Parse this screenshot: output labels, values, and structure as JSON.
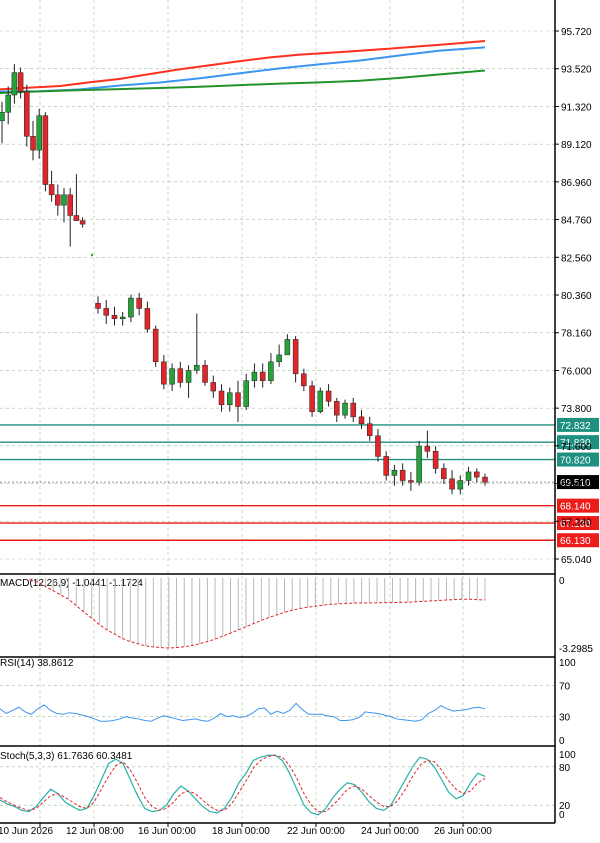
{
  "chart_data": [
    {
      "type": "candlestick",
      "y_axis_ticks": [
        "95.720",
        "93.520",
        "91.320",
        "89.120",
        "86.960",
        "84.760",
        "82.560",
        "80.360",
        "78.160",
        "76.000",
        "73.800",
        "71.600",
        "69.400",
        "67.240",
        "65.040"
      ],
      "x_axis_labels": [
        "10 Jun 2026",
        "12 Jun 08:00",
        "16 Jun 00:00",
        "18 Jun 00:00",
        "22 Jun 00:00",
        "24 Jun 00:00",
        "26 Jun 00:00"
      ],
      "current_price": "69.510",
      "resistance_levels": [
        "72.832",
        "71.830",
        "70.820"
      ],
      "support_levels": [
        "68.140",
        "67.130",
        "66.130"
      ],
      "candles_ohlc": [
        [
          90.5,
          91.6,
          89.2,
          91.0
        ],
        [
          91.0,
          92.5,
          90.3,
          92.0
        ],
        [
          92.0,
          93.8,
          91.5,
          93.3
        ],
        [
          93.3,
          93.6,
          91.8,
          92.2
        ],
        [
          92.2,
          92.6,
          89.0,
          89.6
        ],
        [
          89.6,
          90.5,
          88.2,
          88.8
        ],
        [
          88.8,
          91.2,
          88.3,
          90.8
        ],
        [
          90.8,
          91.0,
          86.4,
          86.8
        ],
        [
          86.8,
          87.6,
          85.8,
          86.2
        ],
        [
          86.2,
          86.8,
          85.0,
          85.6
        ],
        [
          85.6,
          86.6,
          84.6,
          86.2
        ],
        [
          86.2,
          86.6,
          83.2,
          85.0
        ],
        [
          85.0,
          87.4,
          84.8,
          84.7
        ],
        [
          84.7,
          84.9,
          84.3,
          84.5
        ],
        [
          79.9,
          80.3,
          79.3,
          79.6
        ],
        [
          79.6,
          80.1,
          78.7,
          79.2
        ],
        [
          79.2,
          79.7,
          78.6,
          79.0
        ],
        [
          79.0,
          79.4,
          78.6,
          79.1
        ],
        [
          79.1,
          80.4,
          78.8,
          80.2
        ],
        [
          80.2,
          80.5,
          79.2,
          79.6
        ],
        [
          79.6,
          80.0,
          78.2,
          78.4
        ],
        [
          78.4,
          78.6,
          76.2,
          76.5
        ],
        [
          76.5,
          76.9,
          74.9,
          75.2
        ],
        [
          75.2,
          76.4,
          74.8,
          76.1
        ],
        [
          76.1,
          76.5,
          75.0,
          75.3
        ],
        [
          75.3,
          76.3,
          74.4,
          76.0
        ],
        [
          76.0,
          79.3,
          75.8,
          76.3
        ],
        [
          76.3,
          76.6,
          75.1,
          75.3
        ],
        [
          75.3,
          75.7,
          74.4,
          74.8
        ],
        [
          74.8,
          75.2,
          73.6,
          74.0
        ],
        [
          74.0,
          75.0,
          73.6,
          74.7
        ],
        [
          74.7,
          75.4,
          73.0,
          73.9
        ],
        [
          73.9,
          75.8,
          73.7,
          75.4
        ],
        [
          75.4,
          76.4,
          75.0,
          75.9
        ],
        [
          75.9,
          76.4,
          75.0,
          75.4
        ],
        [
          75.4,
          77.0,
          75.2,
          76.5
        ],
        [
          76.5,
          77.5,
          76.2,
          76.9
        ],
        [
          76.9,
          78.1,
          77.6,
          77.8
        ],
        [
          77.8,
          78.0,
          75.3,
          75.8
        ],
        [
          75.8,
          76.1,
          74.8,
          75.1
        ],
        [
          75.1,
          75.4,
          73.3,
          73.6
        ],
        [
          73.6,
          75.0,
          73.5,
          74.8
        ],
        [
          74.8,
          75.2,
          73.9,
          74.2
        ],
        [
          74.2,
          74.4,
          73.0,
          73.4
        ],
        [
          73.4,
          74.3,
          73.2,
          74.1
        ],
        [
          74.1,
          74.4,
          73.0,
          73.3
        ],
        [
          73.3,
          73.7,
          72.6,
          72.9
        ],
        [
          72.9,
          73.3,
          71.9,
          72.2
        ],
        [
          72.2,
          72.6,
          70.7,
          71.0
        ],
        [
          71.0,
          71.3,
          69.6,
          69.9
        ],
        [
          69.9,
          70.5,
          69.3,
          70.2
        ],
        [
          70.2,
          70.6,
          69.3,
          69.6
        ],
        [
          69.6,
          70.1,
          69.0,
          69.5
        ],
        [
          69.5,
          71.9,
          69.3,
          71.6
        ],
        [
          71.6,
          72.5,
          70.9,
          71.3
        ],
        [
          71.3,
          71.6,
          70.0,
          70.3
        ],
        [
          70.3,
          70.6,
          69.4,
          69.7
        ],
        [
          69.7,
          70.2,
          68.8,
          69.1
        ],
        [
          69.1,
          69.9,
          68.8,
          69.6
        ],
        [
          69.6,
          70.4,
          69.3,
          70.1
        ],
        [
          70.1,
          70.3,
          69.5,
          69.8
        ],
        [
          69.8,
          70.0,
          69.3,
          69.5
        ]
      ],
      "moving_averages": [
        {
          "color": "#ff3020",
          "values": [
            [
              0,
              89.4
            ],
            [
              30,
              87.6
            ],
            [
              60,
              86.0
            ],
            [
              90,
              82.3
            ],
            [
              120,
              78.9
            ],
            [
              150,
              74.0
            ],
            [
              180,
              69.3
            ],
            [
              210,
              65.2
            ],
            [
              240,
              61.1
            ],
            [
              270,
              57.4
            ],
            [
              300,
              54.6
            ],
            [
              330,
              52.8
            ],
            [
              360,
              50.8
            ],
            [
              390,
              48.6
            ],
            [
              420,
              46.3
            ],
            [
              450,
              44.0
            ],
            [
              485,
              41.0
            ]
          ]
        },
        {
          "color": "#3c96f0",
          "values": [
            [
              0,
              91.6
            ],
            [
              40,
              91.2
            ],
            [
              80,
              89.4
            ],
            [
              120,
              85.5
            ],
            [
              160,
              82.5
            ],
            [
              200,
              78.2
            ],
            [
              240,
              73.2
            ],
            [
              280,
              68.4
            ],
            [
              320,
              64.3
            ],
            [
              360,
              60.5
            ],
            [
              400,
              55.4
            ],
            [
              440,
              50.6
            ],
            [
              485,
              47.4
            ]
          ]
        },
        {
          "color": "#22922a",
          "values": [
            [
              0,
              93.0
            ],
            [
              40,
              91.4
            ],
            [
              80,
              90.1
            ],
            [
              120,
              89.1
            ],
            [
              160,
              88.0
            ],
            [
              200,
              86.7
            ],
            [
              240,
              85.1
            ],
            [
              280,
              83.6
            ],
            [
              320,
              82.4
            ],
            [
              360,
              80.7
            ],
            [
              400,
              77.9
            ],
            [
              440,
              74.4
            ],
            [
              485,
              70.5
            ]
          ]
        }
      ]
    },
    {
      "type": "histogram",
      "indicator_label": "MACD(12,26,9) -1.0441 -1.1724",
      "y_axis_ticks": [
        "0",
        "-3.2985"
      ],
      "ylim": [
        -3.3,
        0
      ],
      "macd_values": [
        -0.1,
        -0.2,
        -0.4,
        -0.6,
        -0.8,
        -1.0,
        -1.3,
        -1.6,
        -1.9,
        -2.2,
        -2.45,
        -2.65,
        -2.85,
        -3.0,
        -3.1,
        -3.2,
        -3.25,
        -3.28,
        -3.3,
        -3.28,
        -3.24,
        -3.18,
        -3.1,
        -3.0,
        -2.88,
        -2.74,
        -2.6,
        -2.45,
        -2.3,
        -2.15,
        -2.0,
        -1.86,
        -1.74,
        -1.62,
        -1.52,
        -1.44,
        -1.38,
        -1.33,
        -1.28,
        -1.24,
        -1.22,
        -1.2,
        -1.18,
        -1.18,
        -1.17,
        -1.17,
        -1.16,
        -1.16,
        -1.15,
        -1.14,
        -1.12,
        -1.1,
        -1.08,
        -1.06,
        -1.04,
        -1.02,
        -1.0,
        -1.0,
        -1.02,
        -1.04
      ],
      "signal_values": [
        -0.1,
        -0.2,
        -0.4,
        -0.6,
        -0.8,
        -1.0,
        -1.3,
        -1.6,
        -1.9,
        -2.2,
        -2.45,
        -2.65,
        -2.85,
        -3.0,
        -3.1,
        -3.2,
        -3.25,
        -3.28,
        -3.3,
        -3.28,
        -3.24,
        -3.18,
        -3.1,
        -3.0,
        -2.88,
        -2.74,
        -2.6,
        -2.45,
        -2.3,
        -2.15,
        -2.0,
        -1.86,
        -1.74,
        -1.62,
        -1.52,
        -1.44,
        -1.38,
        -1.33,
        -1.28,
        -1.24,
        -1.22,
        -1.2,
        -1.18,
        -1.18,
        -1.17,
        -1.17,
        -1.16,
        -1.16,
        -1.15,
        -1.14,
        -1.12,
        -1.1,
        -1.08,
        -1.06,
        -1.04,
        -1.02,
        -1.0,
        -1.0,
        -1.02,
        -1.04
      ]
    },
    {
      "type": "line",
      "indicator_label": "RSI(14) 38.8612",
      "y_axis_ticks": [
        "100",
        "70",
        "30",
        "0"
      ],
      "ylim": [
        0,
        100
      ],
      "values": [
        40,
        34,
        38,
        42,
        36,
        33,
        40,
        45,
        38,
        34,
        33,
        35,
        34,
        32,
        30,
        27,
        24,
        24,
        25,
        27,
        30,
        28,
        27,
        25,
        24,
        28,
        31,
        29,
        27,
        25,
        26,
        27,
        25,
        24,
        28,
        34,
        30,
        31,
        29,
        30,
        34,
        40,
        41,
        33,
        37,
        34,
        38,
        47,
        39,
        33,
        33,
        33,
        31,
        30,
        25,
        25,
        26,
        29,
        36,
        35,
        34,
        32,
        30,
        27,
        26,
        25,
        24,
        26,
        34,
        38,
        44,
        40,
        37,
        38,
        39,
        41,
        42,
        40
      ]
    },
    {
      "type": "line",
      "indicator_label": "Stoch(5,3,3) 61.7636 60.3481",
      "y_axis_ticks": [
        "100",
        "80",
        "20",
        "0"
      ],
      "ylim": [
        0,
        100
      ],
      "k_values": [
        28,
        22,
        18,
        12,
        10,
        18,
        32,
        45,
        38,
        25,
        18,
        12,
        15,
        35,
        60,
        85,
        92,
        85,
        60,
        35,
        15,
        10,
        12,
        20,
        38,
        50,
        42,
        30,
        18,
        10,
        8,
        15,
        32,
        55,
        70,
        90,
        95,
        98,
        98,
        90,
        70,
        45,
        20,
        8,
        5,
        15,
        32,
        45,
        55,
        52,
        40,
        25,
        15,
        12,
        20,
        40,
        60,
        80,
        95,
        92,
        80,
        60,
        40,
        30,
        35,
        55,
        70,
        65
      ],
      "d_values": [
        32,
        25,
        20,
        15,
        12,
        15,
        25,
        35,
        38,
        32,
        25,
        18,
        15,
        25,
        45,
        65,
        82,
        88,
        75,
        55,
        32,
        18,
        12,
        15,
        25,
        38,
        42,
        38,
        28,
        18,
        12,
        12,
        22,
        40,
        58,
        78,
        90,
        96,
        98,
        95,
        82,
        62,
        38,
        20,
        10,
        10,
        20,
        32,
        45,
        50,
        45,
        35,
        25,
        18,
        18,
        28,
        45,
        65,
        82,
        90,
        88,
        75,
        58,
        45,
        38,
        42,
        55,
        62
      ]
    }
  ]
}
